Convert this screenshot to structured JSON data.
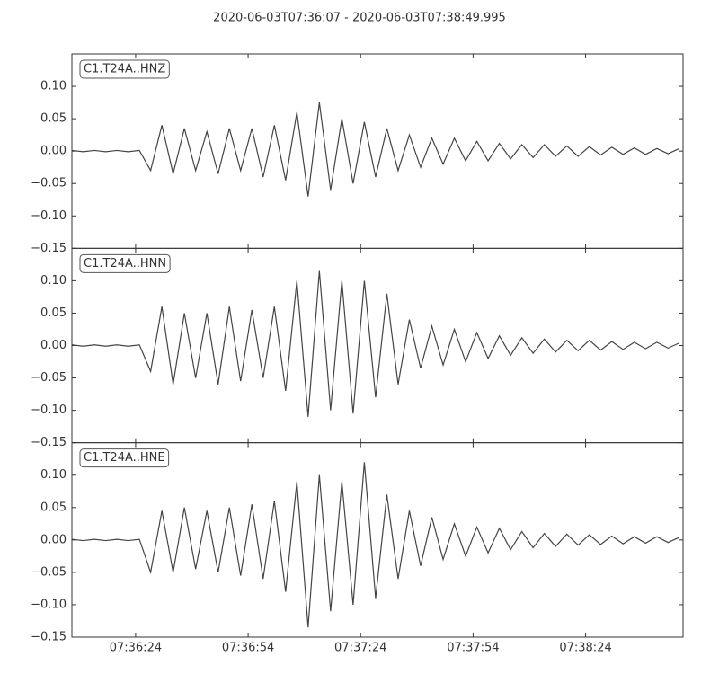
{
  "chart_data": {
    "type": "line",
    "subplots": true,
    "title": "2020-06-03T07:36:07  -  2020-06-03T07:38:49.995",
    "x": [
      "07:36:07",
      "07:36:10",
      "07:36:13",
      "07:36:16",
      "07:36:19",
      "07:36:22",
      "07:36:25",
      "07:36:28",
      "07:36:31",
      "07:36:34",
      "07:36:37",
      "07:36:40",
      "07:36:43",
      "07:36:46",
      "07:36:49",
      "07:36:52",
      "07:36:55",
      "07:36:58",
      "07:37:01",
      "07:37:04",
      "07:37:07",
      "07:37:10",
      "07:37:13",
      "07:37:16",
      "07:37:19",
      "07:37:22",
      "07:37:25",
      "07:37:28",
      "07:37:31",
      "07:37:34",
      "07:37:37",
      "07:37:40",
      "07:37:43",
      "07:37:46",
      "07:37:49",
      "07:37:52",
      "07:37:55",
      "07:37:58",
      "07:38:01",
      "07:38:04",
      "07:38:07",
      "07:38:10",
      "07:38:13",
      "07:38:16",
      "07:38:19",
      "07:38:22",
      "07:38:25",
      "07:38:28",
      "07:38:31",
      "07:38:34",
      "07:38:37",
      "07:38:40",
      "07:38:43",
      "07:38:46",
      "07:38:49"
    ],
    "xlim": [
      "07:36:07",
      "07:38:49.995"
    ],
    "xticks": [
      "07:36:24",
      "07:36:54",
      "07:37:24",
      "07:37:54",
      "07:38:24"
    ],
    "ylim": [
      -0.15,
      0.15
    ],
    "yticks": [
      {
        "value": -0.15,
        "label": "−0.15"
      },
      {
        "value": -0.1,
        "label": "−0.10"
      },
      {
        "value": -0.05,
        "label": "−0.05"
      },
      {
        "value": 0,
        "label": "0.00"
      },
      {
        "value": 0.05,
        "label": "0.05"
      },
      {
        "value": 0.1,
        "label": "0.10"
      }
    ],
    "series": [
      {
        "name": "C1.T24A..HNZ",
        "color": "#444444",
        "values": [
          0.001,
          -0.001,
          0.001,
          -0.001,
          0.001,
          -0.001,
          0.001,
          -0.03,
          0.04,
          -0.035,
          0.035,
          -0.03,
          0.03,
          -0.035,
          0.035,
          -0.03,
          0.035,
          -0.04,
          0.04,
          -0.045,
          0.06,
          -0.07,
          0.075,
          -0.06,
          0.05,
          -0.05,
          0.045,
          -0.04,
          0.035,
          -0.03,
          0.025,
          -0.025,
          0.02,
          -0.02,
          0.02,
          -0.015,
          0.015,
          -0.015,
          0.012,
          -0.012,
          0.01,
          -0.01,
          0.01,
          -0.008,
          0.008,
          -0.008,
          0.007,
          -0.006,
          0.006,
          -0.005,
          0.005,
          -0.005,
          0.004,
          -0.004,
          0.004
        ]
      },
      {
        "name": "C1.T24A..HNN",
        "color": "#444444",
        "values": [
          0.001,
          -0.001,
          0.001,
          -0.001,
          0.001,
          -0.001,
          0.001,
          -0.04,
          0.06,
          -0.06,
          0.05,
          -0.05,
          0.05,
          -0.06,
          0.06,
          -0.055,
          0.055,
          -0.05,
          0.06,
          -0.07,
          0.1,
          -0.11,
          0.115,
          -0.1,
          0.1,
          -0.105,
          0.1,
          -0.08,
          0.08,
          -0.06,
          0.04,
          -0.035,
          0.03,
          -0.03,
          0.025,
          -0.025,
          0.02,
          -0.02,
          0.015,
          -0.015,
          0.012,
          -0.012,
          0.01,
          -0.01,
          0.008,
          -0.008,
          0.008,
          -0.007,
          0.006,
          -0.006,
          0.005,
          -0.005,
          0.005,
          -0.004,
          0.004
        ]
      },
      {
        "name": "C1.T24A..HNE",
        "color": "#444444",
        "values": [
          0.001,
          -0.001,
          0.001,
          -0.001,
          0.001,
          -0.001,
          0.001,
          -0.05,
          0.045,
          -0.05,
          0.05,
          -0.045,
          0.045,
          -0.05,
          0.05,
          -0.055,
          0.055,
          -0.06,
          0.06,
          -0.08,
          0.09,
          -0.135,
          0.1,
          -0.11,
          0.09,
          -0.1,
          0.12,
          -0.09,
          0.07,
          -0.06,
          0.045,
          -0.04,
          0.035,
          -0.03,
          0.025,
          -0.025,
          0.02,
          -0.02,
          0.018,
          -0.015,
          0.013,
          -0.012,
          0.01,
          -0.01,
          0.009,
          -0.008,
          0.008,
          -0.007,
          0.006,
          -0.006,
          0.005,
          -0.005,
          0.005,
          -0.004,
          0.004
        ]
      }
    ]
  }
}
